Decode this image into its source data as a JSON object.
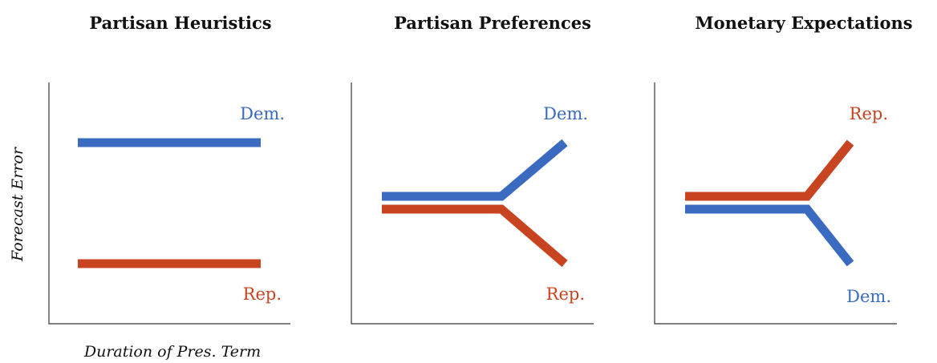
{
  "colors": {
    "dem": "#3a6bc0",
    "rep": "#c84420"
  },
  "x_axis_label": "Duration of Pres. Term",
  "y_axis_label": "Forecast Error",
  "panels": [
    {
      "title": "Partisan Heuristics",
      "labels": {
        "dem": "Dem.",
        "rep": "Rep."
      }
    },
    {
      "title": "Partisan Preferences",
      "labels": {
        "dem": "Dem.",
        "rep": "Rep."
      }
    },
    {
      "title": "Monetary Expectations",
      "labels": {
        "dem": "Dem.",
        "rep": "Rep."
      }
    }
  ]
}
